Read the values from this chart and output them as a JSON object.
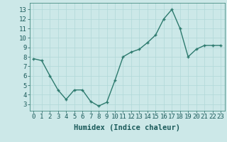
{
  "x": [
    0,
    1,
    2,
    3,
    4,
    5,
    6,
    7,
    8,
    9,
    10,
    11,
    12,
    13,
    14,
    15,
    16,
    17,
    18,
    19,
    20,
    21,
    22,
    23
  ],
  "y": [
    7.8,
    7.6,
    6.0,
    4.5,
    3.5,
    4.5,
    4.5,
    3.3,
    2.8,
    3.2,
    5.5,
    8.0,
    8.5,
    8.8,
    9.5,
    10.3,
    12.0,
    13.0,
    11.0,
    8.0,
    8.8,
    9.2,
    9.2,
    9.2
  ],
  "line_color": "#2d7a6e",
  "marker_color": "#2d7a6e",
  "bg_color": "#cce8e8",
  "grid_color": "#b0d8d8",
  "xlabel": "Humidex (Indice chaleur)",
  "xlim": [
    -0.5,
    23.5
  ],
  "ylim": [
    2.3,
    13.7
  ],
  "yticks": [
    3,
    4,
    5,
    6,
    7,
    8,
    9,
    10,
    11,
    12,
    13
  ],
  "xtick_labels": [
    "0",
    "1",
    "2",
    "3",
    "4",
    "5",
    "6",
    "7",
    "8",
    "9",
    "10",
    "11",
    "12",
    "13",
    "14",
    "15",
    "16",
    "17",
    "18",
    "19",
    "20",
    "21",
    "22",
    "23"
  ],
  "xlabel_fontsize": 7.5,
  "tick_fontsize": 6.5,
  "line_width": 1.0,
  "marker_size": 2.5
}
